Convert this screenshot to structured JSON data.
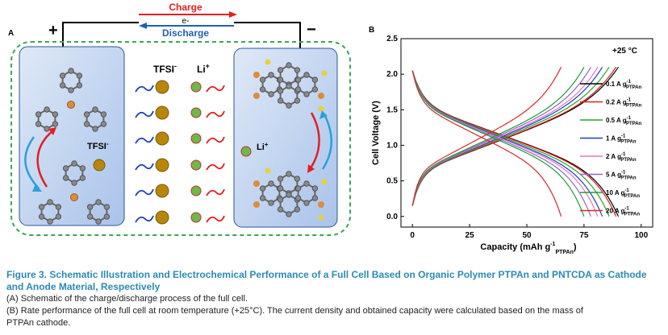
{
  "panel_a": {
    "label": "A",
    "charge_label": "Charge",
    "electron_label": "e-",
    "discharge_label": "Discharge",
    "plus": "+",
    "minus": "−",
    "tfsi_label": "TFSI",
    "tfsi_sup": "-",
    "li_label": "Li",
    "li_sup": "+",
    "tfsi_inner_label": "TFSI",
    "tfsi_inner_sup": "-",
    "li_inner_label": "Li",
    "li_inner_sup": "+",
    "colors": {
      "charge": "#e02020",
      "discharge": "#1f5fb8",
      "tfsi_ball": "#b8860b",
      "li_ball": "#6fb84a",
      "border_dash": "#3aa655"
    }
  },
  "panel_b": {
    "label": "B"
  },
  "chart_data": {
    "type": "line",
    "xlabel": "Capacity (mAh g",
    "xlabel_sub": "PTPAn",
    "xlabel_sup": "-1",
    "xlabel_end": ")",
    "ylabel": "Cell Voltage (V)",
    "xlim": [
      -5,
      105
    ],
    "ylim": [
      -0.15,
      2.5
    ],
    "x_ticks": [
      0,
      25,
      50,
      75,
      100
    ],
    "y_ticks": [
      0.0,
      0.5,
      1.0,
      1.5,
      2.0,
      2.5
    ],
    "temperature_label": "+25 °C",
    "legend_position": "right",
    "series": [
      {
        "name": "0.1 A g",
        "sub": "PTPAn",
        "sup": "-1",
        "color": "#000000",
        "capacity": 90
      },
      {
        "name": "0.2 A g",
        "sub": "PTPAn",
        "sup": "-1",
        "color": "#e41a1c",
        "capacity": 89
      },
      {
        "name": "0.5 A g",
        "sub": "PTPAn",
        "sup": "-1",
        "color": "#2ca02c",
        "capacity": 86
      },
      {
        "name": "1 A g",
        "sub": "PTPAn",
        "sup": "-1",
        "color": "#1f3fbf",
        "capacity": 83
      },
      {
        "name": "2 A g",
        "sub": "PTPAn",
        "sup": "-1",
        "color": "#e377c2",
        "capacity": 81
      },
      {
        "name": "5 A g",
        "sub": "PTPAn",
        "sup": "-1",
        "color": "#9467bd",
        "capacity": 78
      },
      {
        "name": "10 A g",
        "sub": "PTPAn",
        "sup": "-1",
        "color": "#1a9e3a",
        "capacity": 75
      },
      {
        "name": "20 A g",
        "sub": "PTPAn",
        "sup": "-1",
        "color": "#d62728",
        "capacity": 65
      }
    ]
  },
  "caption": {
    "title": "Figure 3.  Schematic Illustration and Electrochemical Performance of a Full Cell Based on Organic Polymer PTPAn and PNTCDA as Cathode and Anode Material, Respectively",
    "line_a": "(A) Schematic of the charge/discharge process of the full cell.",
    "line_b1": "(B) Rate performance of the full cell at room temperature (+25°C). The current density and obtained capacity were calculated based on the mass of",
    "line_b2": "PTPAn cathode."
  }
}
